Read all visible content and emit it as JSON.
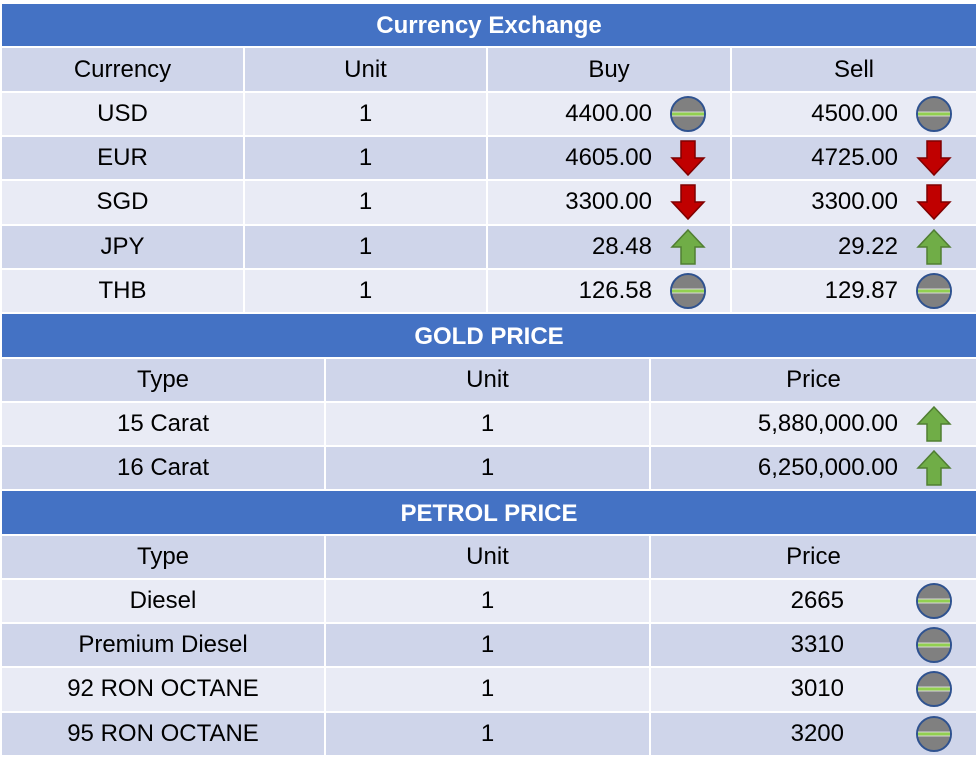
{
  "currency": {
    "title": "Currency Exchange",
    "headers": [
      "Currency",
      "Unit",
      "Buy",
      "Sell"
    ],
    "rows": [
      {
        "currency": "USD",
        "unit": "1",
        "buy": "4400.00",
        "buy_trend": "neutral-icon",
        "sell": "4500.00",
        "sell_trend": "neutral-icon"
      },
      {
        "currency": "EUR",
        "unit": "1",
        "buy": "4605.00",
        "buy_trend": "down-arrow-icon",
        "sell": "4725.00",
        "sell_trend": "down-arrow-icon"
      },
      {
        "currency": "SGD",
        "unit": "1",
        "buy": "3300.00",
        "buy_trend": "down-arrow-icon",
        "sell": "3300.00",
        "sell_trend": "down-arrow-icon"
      },
      {
        "currency": "JPY",
        "unit": "1",
        "buy": "28.48",
        "buy_trend": "up-arrow-icon",
        "sell": "29.22",
        "sell_trend": "up-arrow-icon"
      },
      {
        "currency": "THB",
        "unit": "1",
        "buy": "126.58",
        "buy_trend": "neutral-icon",
        "sell": "129.87",
        "sell_trend": "neutral-icon"
      }
    ]
  },
  "gold": {
    "title": "GOLD PRICE",
    "headers": [
      "Type",
      "Unit",
      "Price"
    ],
    "rows": [
      {
        "type": "15 Carat",
        "unit": "1",
        "price": "5,880,000.00",
        "trend": "up-arrow-icon"
      },
      {
        "type": "16 Carat",
        "unit": "1",
        "price": "6,250,000.00",
        "trend": "up-arrow-icon"
      }
    ]
  },
  "petrol": {
    "title": "PETROL PRICE",
    "headers": [
      "Type",
      "Unit",
      "Price"
    ],
    "rows": [
      {
        "type": "Diesel",
        "unit": "1",
        "price": "2665",
        "trend": "neutral-icon"
      },
      {
        "type": "Premium Diesel",
        "unit": "1",
        "price": "3310",
        "trend": "neutral-icon"
      },
      {
        "type": "92 RON OCTANE",
        "unit": "1",
        "price": "3010",
        "trend": "neutral-icon"
      },
      {
        "type": "95 RON OCTANE",
        "unit": "1",
        "price": "3200",
        "trend": "neutral-icon"
      }
    ]
  },
  "colors": {
    "title_bar": "#4472c4",
    "header_row": "#cfd5ea",
    "alt_row": "#e9ebf5",
    "up_arrow": "#70ad47",
    "down_arrow": "#c00000",
    "neutral_circle": "#808080",
    "neutral_line": "#92d050"
  }
}
